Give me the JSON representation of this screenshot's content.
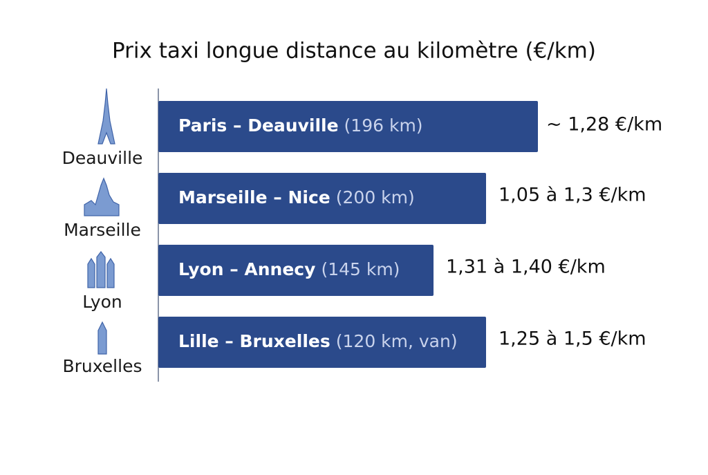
{
  "title": "Prix taxi longue distance au kilomètre (€/km)",
  "rows": [
    {
      "city": "Deauville",
      "route": "Paris – Deauville",
      "distance": "(196 km)",
      "price": "~ 1,28 €/km"
    },
    {
      "city": "Marseille",
      "route": "Marseille – Nice",
      "distance": "(200 km)",
      "price": "1,05 à 1,3 €/km"
    },
    {
      "city": "Lyon",
      "route": "Lyon – Annecy",
      "distance": "(145 km)",
      "price": "1,31 à 1,40 €/km"
    },
    {
      "city": "Bruxelles",
      "route": "Lille – Bruxelles",
      "distance": "(120 km, van)",
      "price": "1,25 à 1,5 €/km"
    }
  ]
}
